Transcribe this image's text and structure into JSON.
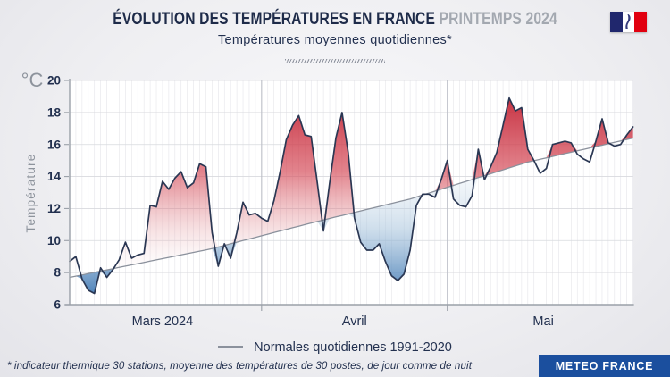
{
  "header": {
    "title": "ÉVOLUTION DES TEMPÉRATURES EN FRANCE",
    "title_suffix": "PRINTEMPS 2024",
    "subtitle": "Températures moyennes quotidiennes*"
  },
  "y_axis": {
    "unit": "°C",
    "label": "Température",
    "ticks": [
      20,
      18,
      16,
      14,
      12,
      10,
      8,
      6
    ],
    "min": 6,
    "max": 20
  },
  "x_axis": {
    "month_labels": [
      "Mars 2024",
      "Avril",
      "Mai"
    ],
    "month_label_days": [
      16,
      47,
      77.5
    ],
    "month_start_days": [
      1,
      32,
      62
    ],
    "total_days": 92
  },
  "legend": {
    "label": "Normales quotidiennes 1991-2020"
  },
  "footnote": "* indicateur thermique 30 stations, moyenne des températures de 30 postes, de jour comme de nuit",
  "brand": {
    "label": "METEO FRANCE"
  },
  "colors": {
    "plot_bg": "#ffffff",
    "grid_minor": "#e5e5ea",
    "grid_major": "#d8d9de",
    "grid_month": "#bcbfc8",
    "axis": "#9aa0a8",
    "text_navy": "#22304f",
    "text_gray": "#8d939c",
    "daily_line": "#2a3753",
    "normal_line": "#8b919c",
    "warm_fill": "#c11f30",
    "cold_fill": "#2e6cad",
    "brand_bg": "#1b4f9e",
    "flag_blue": "#20276d",
    "flag_red": "#e1000f"
  },
  "chart_data": {
    "type": "area",
    "title": "Évolution des températures en France — Printemps 2024",
    "ylabel": "Température (°C)",
    "ylim": [
      6,
      20
    ],
    "x_unit": "jour (1 = 1er mars 2024, 92 = 31 mai 2024)",
    "grid": true,
    "legend_position": "bottom",
    "series": [
      {
        "name": "Températures moyennes quotidiennes",
        "values": [
          8.7,
          9.0,
          7.6,
          6.9,
          6.7,
          8.3,
          7.7,
          8.2,
          8.8,
          9.9,
          8.9,
          9.1,
          9.2,
          12.2,
          12.1,
          13.7,
          13.2,
          13.9,
          14.3,
          13.3,
          13.6,
          14.8,
          14.6,
          10.5,
          8.4,
          9.8,
          8.9,
          10.5,
          12.4,
          11.6,
          11.7,
          11.4,
          11.2,
          12.5,
          14.3,
          16.3,
          17.2,
          17.8,
          16.6,
          16.5,
          13.6,
          10.6,
          13.6,
          16.4,
          18.0,
          15.5,
          11.4,
          9.9,
          9.4,
          9.4,
          9.8,
          8.7,
          7.8,
          7.5,
          7.9,
          9.4,
          12.2,
          12.9,
          12.9,
          12.7,
          13.8,
          15.0,
          12.6,
          12.2,
          12.1,
          12.8,
          15.7,
          13.8,
          14.6,
          15.5,
          17.2,
          18.9,
          18.1,
          18.3,
          15.7,
          15.0,
          14.2,
          14.5,
          16.0,
          16.1,
          16.2,
          16.1,
          15.4,
          15.1,
          14.9,
          16.2,
          17.6,
          16.1,
          15.9,
          16.0,
          16.6,
          17.1
        ]
      },
      {
        "name": "Normales quotidiennes 1991-2020",
        "anchor_points": [
          [
            1,
            7.7
          ],
          [
            24,
            9.5
          ],
          [
            40,
            11.1
          ],
          [
            56,
            12.6
          ],
          [
            75,
            14.9
          ],
          [
            92,
            16.4
          ]
        ]
      }
    ]
  }
}
